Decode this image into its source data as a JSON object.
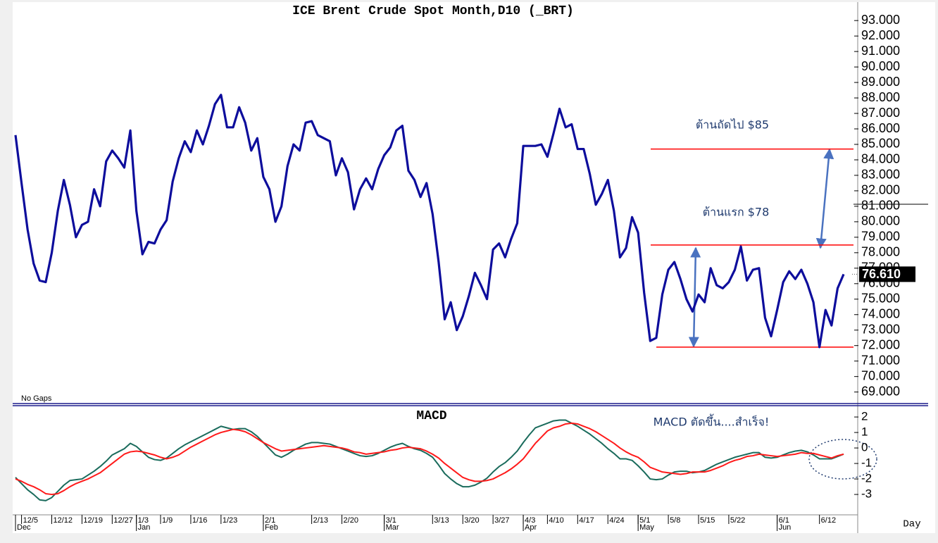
{
  "chart_data": [
    {
      "type": "line",
      "title": "ICE Brent Crude Spot Month,D10 (_BRT)",
      "note": "No Gaps",
      "color": "#0d0d9c",
      "values": [
        85.6,
        82.5,
        79.5,
        77.3,
        76.2,
        76.1,
        78.0,
        80.7,
        82.7,
        81.1,
        79.0,
        79.8,
        80.0,
        82.1,
        81.0,
        83.9,
        84.6,
        84.1,
        83.5,
        85.9,
        80.7,
        77.9,
        78.7,
        78.6,
        79.5,
        80.1,
        82.6,
        84.1,
        85.2,
        84.5,
        85.9,
        85.0,
        86.2,
        87.6,
        88.2,
        86.1,
        86.1,
        87.4,
        86.4,
        84.6,
        85.4,
        82.9,
        82.1,
        80.0,
        81.0,
        83.6,
        85.0,
        84.6,
        86.4,
        86.5,
        85.6,
        85.4,
        85.2,
        83.0,
        84.1,
        83.2,
        80.8,
        82.1,
        82.8,
        82.1,
        83.4,
        84.3,
        84.8,
        85.9,
        86.2,
        83.3,
        82.7,
        81.6,
        82.5,
        80.5,
        77.4,
        73.7,
        74.8,
        73.0,
        73.9,
        75.2,
        76.7,
        75.9,
        75.0,
        78.2,
        78.6,
        77.7,
        78.9,
        79.9,
        84.9,
        84.9,
        84.9,
        85.0,
        84.2,
        85.7,
        87.3,
        86.1,
        86.3,
        84.7,
        84.7,
        83.1,
        81.1,
        81.8,
        82.7,
        80.7,
        77.7,
        78.3,
        80.3,
        79.3,
        75.4,
        72.3,
        72.5,
        75.3,
        76.9,
        77.4,
        76.3,
        75.0,
        74.2,
        75.3,
        74.8,
        77.0,
        75.9,
        75.7,
        76.1,
        76.9,
        78.4,
        76.2,
        76.9,
        77.0,
        73.8,
        72.6,
        74.3,
        76.1,
        76.8,
        76.3,
        76.9,
        76.0,
        74.8,
        71.9,
        74.3,
        73.3,
        75.7,
        76.61
      ],
      "value_labels": [
        null,
        null,
        null,
        null,
        null,
        null,
        null,
        null,
        null,
        null,
        null,
        null,
        null,
        null,
        null,
        null,
        null,
        null,
        null,
        null,
        null,
        null,
        null,
        null,
        null,
        null,
        null,
        null,
        null,
        null,
        null,
        null,
        null,
        null,
        null,
        null,
        null,
        null,
        null,
        null,
        null,
        null,
        null,
        null,
        null,
        null,
        null,
        null,
        null,
        null,
        null,
        null,
        null,
        null,
        null,
        null,
        null,
        null,
        null,
        null,
        null,
        null,
        null,
        null,
        null,
        null,
        null,
        null,
        null,
        null,
        null,
        null,
        null,
        null,
        null,
        null,
        null,
        null,
        null,
        null,
        null,
        null,
        null,
        null,
        null,
        null,
        null,
        null,
        null,
        null,
        null,
        null,
        null,
        null,
        null,
        null,
        null,
        null,
        null,
        null,
        null,
        null,
        null,
        null,
        null,
        null,
        null,
        null,
        null,
        null,
        null,
        null,
        null,
        null,
        null,
        null,
        null,
        null,
        null,
        null,
        null,
        null,
        null,
        null,
        null,
        null,
        null,
        null,
        null,
        null,
        null,
        null,
        null,
        null,
        null,
        null,
        null,
        "76.610"
      ],
      "ylim": [
        68.3,
        94.1
      ],
      "yticks": [
        {
          "value": 69,
          "label": "69.000"
        },
        {
          "value": 70,
          "label": "70.000"
        },
        {
          "value": 71,
          "label": "71.000"
        },
        {
          "value": 72,
          "label": "72.000"
        },
        {
          "value": 73,
          "label": "73.000"
        },
        {
          "value": 74,
          "label": "74.000"
        },
        {
          "value": 75,
          "label": "75.000"
        },
        {
          "value": 76,
          "label": "76.000"
        },
        {
          "value": 77,
          "label": "77.000"
        },
        {
          "value": 78,
          "label": "78.000"
        },
        {
          "value": 79,
          "label": "79.000"
        },
        {
          "value": 80,
          "label": "80.000"
        },
        {
          "value": 81,
          "label": "81.000"
        },
        {
          "value": 82,
          "label": "82.000"
        },
        {
          "value": 83,
          "label": "83.000"
        },
        {
          "value": 84,
          "label": "84.000"
        },
        {
          "value": 85,
          "label": "85.000"
        },
        {
          "value": 86,
          "label": "86.000"
        },
        {
          "value": 87,
          "label": "87.000"
        },
        {
          "value": 88,
          "label": "88.000"
        },
        {
          "value": 89,
          "label": "89.000"
        },
        {
          "value": 90,
          "label": "90.000"
        },
        {
          "value": 91,
          "label": "91.000"
        },
        {
          "value": 92,
          "label": "92.000"
        },
        {
          "value": 93,
          "label": "93.000"
        }
      ],
      "hlines": [
        {
          "value": 84.7,
          "color": "#ff0000"
        },
        {
          "value": 78.5,
          "color": "#ff0000"
        },
        {
          "value": 71.9,
          "color": "#ff0000"
        }
      ],
      "annotations": [
        "ต้านถัดไป $85",
        "ต้านแรก $78"
      ]
    },
    {
      "type": "line",
      "title": "MACD",
      "x_label": "Day",
      "annotation": "MACD ตัดขึ้น....สำเร็จ!",
      "categories": [
        null,
        "12/5",
        null,
        null,
        null,
        null,
        "12/12",
        null,
        null,
        null,
        null,
        "12/19",
        null,
        null,
        null,
        null,
        "12/27",
        null,
        null,
        null,
        "1/3",
        null,
        null,
        null,
        "1/9",
        null,
        null,
        null,
        null,
        "1/16",
        null,
        null,
        null,
        null,
        "1/23",
        null,
        null,
        null,
        null,
        null,
        null,
        "2/1",
        null,
        null,
        null,
        null,
        null,
        null,
        null,
        "2/13",
        null,
        null,
        null,
        null,
        "2/20",
        null,
        null,
        null,
        null,
        null,
        null,
        "3/1",
        null,
        null,
        null,
        null,
        null,
        null,
        null,
        "3/13",
        null,
        null,
        null,
        null,
        "3/20",
        null,
        null,
        null,
        null,
        "3/27",
        null,
        null,
        null,
        null,
        "4/3",
        null,
        null,
        null,
        "4/10",
        null,
        null,
        null,
        null,
        "4/17",
        null,
        null,
        null,
        null,
        "4/24",
        null,
        null,
        null,
        null,
        "5/1",
        null,
        null,
        null,
        null,
        "5/8",
        null,
        null,
        null,
        null,
        "5/15",
        null,
        null,
        null,
        null,
        "5/22",
        null,
        null,
        null,
        null,
        null,
        null,
        null,
        "6/1",
        null,
        null,
        null,
        null,
        null,
        null,
        "6/12",
        null,
        null,
        null,
        null
      ],
      "months": [
        "Dec",
        null,
        null,
        null,
        null,
        null,
        null,
        null,
        null,
        null,
        null,
        null,
        null,
        null,
        null,
        null,
        null,
        null,
        null,
        null,
        "Jan",
        null,
        null,
        null,
        null,
        null,
        null,
        null,
        null,
        null,
        null,
        null,
        null,
        null,
        null,
        null,
        null,
        null,
        null,
        null,
        null,
        "Feb",
        null,
        null,
        null,
        null,
        null,
        null,
        null,
        null,
        null,
        null,
        null,
        null,
        null,
        null,
        null,
        null,
        null,
        null,
        null,
        "Mar",
        null,
        null,
        null,
        null,
        null,
        null,
        null,
        null,
        null,
        null,
        null,
        null,
        null,
        null,
        null,
        null,
        null,
        null,
        null,
        null,
        null,
        null,
        "Apr",
        null,
        null,
        null,
        null,
        null,
        null,
        null,
        null,
        null,
        null,
        null,
        null,
        null,
        null,
        null,
        null,
        null,
        null,
        "May",
        null,
        null,
        null,
        null,
        null,
        null,
        null,
        null,
        null,
        null,
        null,
        null,
        null,
        null,
        null,
        null,
        null,
        null,
        null,
        null,
        null,
        null,
        "Jun",
        null,
        null,
        null,
        null,
        null,
        null,
        null,
        null,
        null,
        null,
        null
      ],
      "series": [
        {
          "color": "#1a6b5c",
          "values": [
            -1.9,
            -2.3,
            -2.7,
            -3.0,
            -3.35,
            -3.4,
            -3.2,
            -2.8,
            -2.4,
            -2.1,
            -2.05,
            -2.0,
            -1.75,
            -1.5,
            -1.2,
            -0.85,
            -0.45,
            -0.25,
            -0.05,
            0.3,
            0.1,
            -0.25,
            -0.6,
            -0.75,
            -0.8,
            -0.65,
            -0.35,
            -0.05,
            0.2,
            0.4,
            0.6,
            0.8,
            1.0,
            1.2,
            1.4,
            1.3,
            1.2,
            1.25,
            1.25,
            1.05,
            0.75,
            0.35,
            -0.05,
            -0.45,
            -0.6,
            -0.4,
            -0.15,
            0.05,
            0.25,
            0.35,
            0.35,
            0.3,
            0.25,
            0.1,
            -0.05,
            -0.2,
            -0.35,
            -0.5,
            -0.55,
            -0.5,
            -0.35,
            -0.15,
            0.05,
            0.2,
            0.3,
            0.1,
            -0.05,
            -0.15,
            -0.35,
            -0.6,
            -1.1,
            -1.65,
            -2.0,
            -2.3,
            -2.5,
            -2.5,
            -2.4,
            -2.2,
            -1.95,
            -1.55,
            -1.2,
            -0.95,
            -0.6,
            -0.2,
            0.35,
            0.85,
            1.3,
            1.45,
            1.6,
            1.75,
            1.8,
            1.8,
            1.6,
            1.4,
            1.15,
            0.9,
            0.6,
            0.3,
            -0.05,
            -0.35,
            -0.7,
            -0.7,
            -0.8,
            -1.15,
            -1.55,
            -2.0,
            -2.05,
            -2.0,
            -1.75,
            -1.55,
            -1.5,
            -1.5,
            -1.6,
            -1.55,
            -1.45,
            -1.25,
            -1.05,
            -0.9,
            -0.75,
            -0.6,
            -0.5,
            -0.4,
            -0.3,
            -0.3,
            -0.6,
            -0.65,
            -0.6,
            -0.45,
            -0.3,
            -0.2,
            -0.15,
            -0.25,
            -0.45,
            -0.7,
            -0.7,
            -0.7,
            -0.55,
            -0.4
          ]
        },
        {
          "color": "#ff1a1a",
          "values": [
            -2.0,
            -2.15,
            -2.35,
            -2.5,
            -2.7,
            -2.95,
            -3.0,
            -2.95,
            -2.75,
            -2.5,
            -2.3,
            -2.15,
            -2.0,
            -1.8,
            -1.6,
            -1.3,
            -1.0,
            -0.7,
            -0.4,
            -0.25,
            -0.2,
            -0.25,
            -0.35,
            -0.45,
            -0.6,
            -0.7,
            -0.6,
            -0.45,
            -0.2,
            0.05,
            0.25,
            0.45,
            0.65,
            0.85,
            1.0,
            1.1,
            1.2,
            1.15,
            1.05,
            0.85,
            0.6,
            0.35,
            0.15,
            -0.05,
            -0.2,
            -0.15,
            -0.1,
            -0.05,
            0,
            0.05,
            0.1,
            0.15,
            0.1,
            0.05,
            0,
            -0.1,
            -0.25,
            -0.3,
            -0.4,
            -0.35,
            -0.3,
            -0.25,
            -0.15,
            -0.1,
            0,
            0.05,
            0,
            -0.05,
            -0.2,
            -0.4,
            -0.65,
            -1.0,
            -1.3,
            -1.6,
            -1.9,
            -2.05,
            -2.15,
            -2.15,
            -2.1,
            -2.0,
            -1.8,
            -1.6,
            -1.35,
            -1.05,
            -0.7,
            -0.2,
            0.3,
            0.7,
            1.1,
            1.3,
            1.4,
            1.55,
            1.6,
            1.55,
            1.4,
            1.25,
            1.05,
            0.8,
            0.55,
            0.3,
            0,
            -0.25,
            -0.45,
            -0.6,
            -0.9,
            -1.25,
            -1.4,
            -1.55,
            -1.6,
            -1.65,
            -1.7,
            -1.65,
            -1.55,
            -1.55,
            -1.55,
            -1.45,
            -1.3,
            -1.15,
            -0.95,
            -0.8,
            -0.7,
            -0.55,
            -0.5,
            -0.4,
            -0.45,
            -0.5,
            -0.55,
            -0.5,
            -0.45,
            -0.4,
            -0.3,
            -0.35,
            -0.35,
            -0.45,
            -0.55,
            -0.65,
            -0.5,
            -0.4
          ]
        }
      ],
      "ylim": [
        -4.27,
        2.64
      ],
      "yticks": [
        2,
        1,
        0,
        -1,
        -2,
        -3
      ]
    }
  ]
}
